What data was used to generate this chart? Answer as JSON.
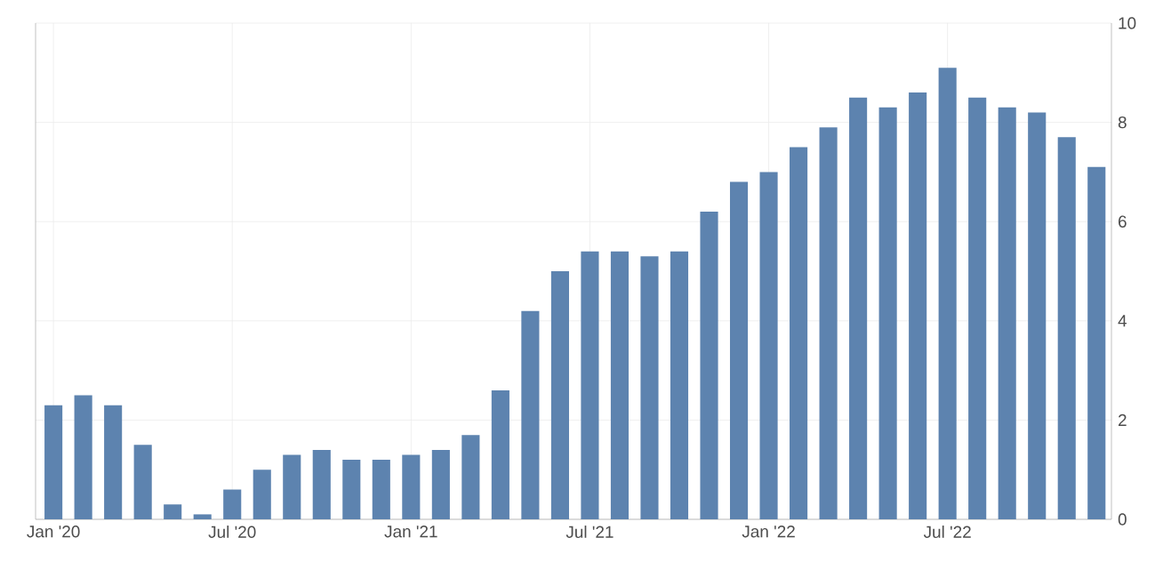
{
  "chart_data": {
    "type": "bar",
    "categories": [
      "Jan '20",
      null,
      null,
      null,
      null,
      null,
      "Jul '20",
      null,
      null,
      null,
      null,
      null,
      "Jan '21",
      null,
      null,
      null,
      null,
      null,
      "Jul '21",
      null,
      null,
      null,
      null,
      null,
      "Jan '22",
      null,
      null,
      null,
      null,
      null,
      "Jul '22",
      null,
      null,
      null,
      null,
      null
    ],
    "values": [
      2.3,
      2.5,
      2.3,
      1.5,
      0.3,
      0.1,
      0.6,
      1.0,
      1.3,
      1.4,
      1.2,
      1.2,
      1.3,
      1.4,
      1.7,
      2.6,
      4.2,
      5.0,
      5.4,
      5.4,
      5.3,
      5.4,
      6.2,
      6.8,
      7.0,
      7.5,
      7.9,
      8.5,
      8.3,
      8.6,
      9.1,
      8.5,
      8.3,
      8.2,
      7.7,
      7.1
    ],
    "color": "#5d83af",
    "ylim": [
      0,
      10
    ],
    "yticks": [
      0,
      2,
      4,
      6,
      8,
      10
    ],
    "grid": true
  }
}
